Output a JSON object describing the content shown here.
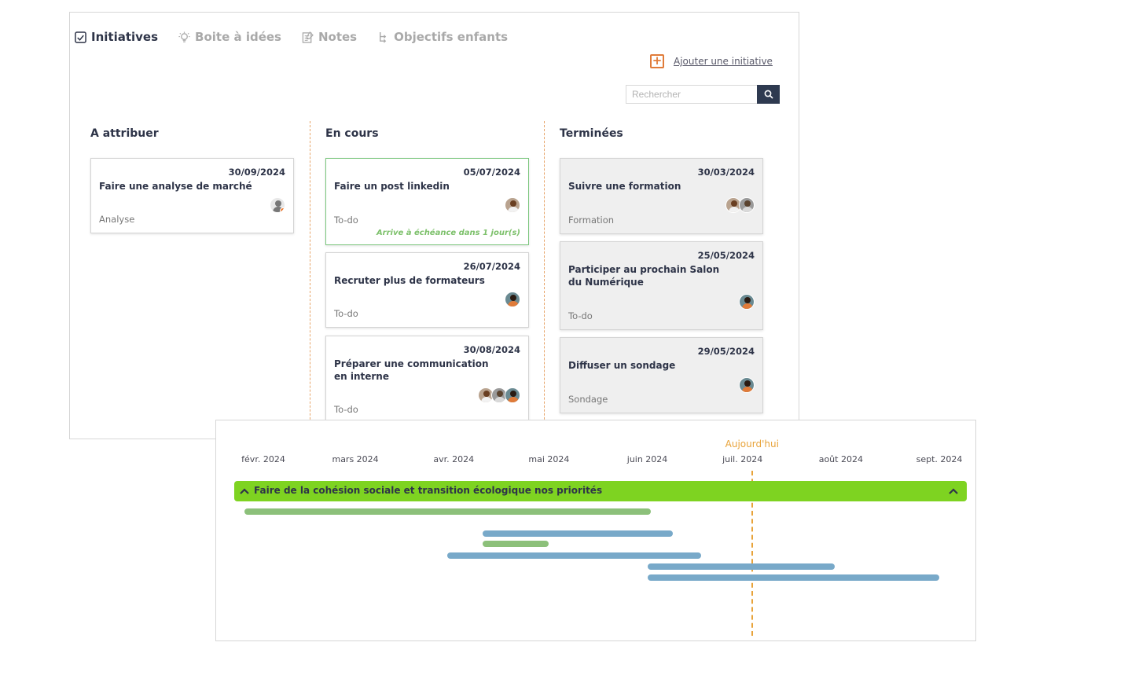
{
  "tabs": [
    {
      "label": "Initiatives",
      "icon": "checkbox-icon",
      "active": true
    },
    {
      "label": "Boite à idées",
      "icon": "lightbulb-icon",
      "active": false
    },
    {
      "label": "Notes",
      "icon": "notes-icon",
      "active": false
    },
    {
      "label": "Objectifs enfants",
      "icon": "child-goals-icon",
      "active": false
    }
  ],
  "toolbar": {
    "add_label": "Ajouter une initiative",
    "search_placeholder": "Rechercher"
  },
  "columns": [
    {
      "title": "A attribuer",
      "cards": [
        {
          "date": "30/09/2024",
          "title": "Faire une analyse de marché",
          "category": "Analyse",
          "avatars": [
            "generic"
          ]
        }
      ]
    },
    {
      "title": "En cours",
      "cards": [
        {
          "date": "05/07/2024",
          "title": "Faire un post linkedin",
          "category": "To-do",
          "due": "Arrive à échéance dans 1 jour(s)",
          "avatars": [
            "p1"
          ]
        },
        {
          "date": "26/07/2024",
          "title": "Recruter plus de formateurs",
          "category": "To-do",
          "avatars": [
            "p3"
          ]
        },
        {
          "date": "30/08/2024",
          "title": "Préparer une communication en interne",
          "category": "To-do",
          "avatars": [
            "p1",
            "p2",
            "p3"
          ]
        }
      ]
    },
    {
      "title": "Terminées",
      "cards": [
        {
          "date": "30/03/2024",
          "title": "Suivre une formation",
          "category": "Formation",
          "avatars": [
            "p1",
            "p2"
          ]
        },
        {
          "date": "25/05/2024",
          "title": "Participer au prochain Salon du Numérique",
          "category": "To-do",
          "avatars": [
            "p3"
          ]
        },
        {
          "date": "29/05/2024",
          "title": "Diffuser un sondage",
          "category": "Sondage",
          "avatars": [
            "p3"
          ]
        }
      ]
    }
  ],
  "timeline": {
    "today_label": "Aujourd'hui",
    "today_date": "2024-07-04",
    "months": [
      {
        "label": "févr. 2024",
        "date": "2024-02-01"
      },
      {
        "label": "mars 2024",
        "date": "2024-03-01"
      },
      {
        "label": "avr. 2024",
        "date": "2024-04-01"
      },
      {
        "label": "mai 2024",
        "date": "2024-05-01"
      },
      {
        "label": "juin 2024",
        "date": "2024-06-01"
      },
      {
        "label": "juil. 2024",
        "date": "2024-07-01"
      },
      {
        "label": "août 2024",
        "date": "2024-08-01"
      },
      {
        "label": "sept. 2024",
        "date": "2024-09-01"
      }
    ],
    "goal": "Faire de la cohésion sociale et transition écologique nos priorités",
    "bars": [
      {
        "start": "2024-01-26",
        "end": "2024-06-02",
        "color": "#8cc07a"
      },
      {
        "start": "2024-04-10",
        "end": "2024-06-09",
        "color": "#78a9c9"
      },
      {
        "start": "2024-04-10",
        "end": "2024-05-01",
        "color": "#8cc07a"
      },
      {
        "start": "2024-03-30",
        "end": "2024-06-18",
        "color": "#78a9c9"
      },
      {
        "start": "2024-06-01",
        "end": "2024-07-30",
        "color": "#78a9c9"
      },
      {
        "start": "2024-06-01",
        "end": "2024-09-01",
        "color": "#78a9c9"
      }
    ],
    "colors": {
      "goal": "#7ed321",
      "today": "#e8a33a"
    }
  }
}
